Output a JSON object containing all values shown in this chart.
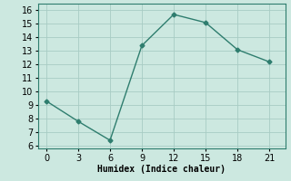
{
  "x": [
    0,
    3,
    6,
    9,
    12,
    15,
    18,
    21
  ],
  "y": [
    9.3,
    7.8,
    6.4,
    13.4,
    15.7,
    15.1,
    13.1,
    12.2
  ],
  "line_color": "#2e7d6e",
  "marker": "D",
  "marker_size": 2.5,
  "xlabel": "Humidex (Indice chaleur)",
  "xlabel_fontsize": 7,
  "xlim": [
    -0.8,
    22.5
  ],
  "ylim": [
    5.8,
    16.5
  ],
  "yticks": [
    6,
    7,
    8,
    9,
    10,
    11,
    12,
    13,
    14,
    15,
    16
  ],
  "xticks": [
    0,
    3,
    6,
    9,
    12,
    15,
    18,
    21
  ],
  "grid_color": "#a8ccc4",
  "bg_color": "#cce8e0",
  "tick_fontsize": 7,
  "linewidth": 1.0,
  "spine_color": "#2e7d6e"
}
